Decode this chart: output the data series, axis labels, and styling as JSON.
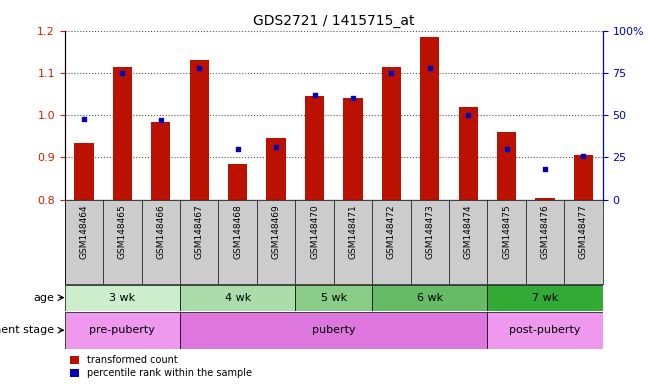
{
  "title": "GDS2721 / 1415715_at",
  "samples": [
    "GSM148464",
    "GSM148465",
    "GSM148466",
    "GSM148467",
    "GSM148468",
    "GSM148469",
    "GSM148470",
    "GSM148471",
    "GSM148472",
    "GSM148473",
    "GSM148474",
    "GSM148475",
    "GSM148476",
    "GSM148477"
  ],
  "transformed_count": [
    0.935,
    1.115,
    0.985,
    1.13,
    0.885,
    0.945,
    1.045,
    1.04,
    1.115,
    1.185,
    1.02,
    0.96,
    0.805,
    0.905
  ],
  "percentile_rank": [
    48,
    75,
    47,
    78,
    30,
    31,
    62,
    60,
    75,
    78,
    50,
    30,
    18,
    26
  ],
  "ylim_left": [
    0.8,
    1.2
  ],
  "ylim_right": [
    0,
    100
  ],
  "yticks_left": [
    0.8,
    0.9,
    1.0,
    1.1,
    1.2
  ],
  "yticks_right": [
    0,
    25,
    50,
    75,
    100
  ],
  "bar_color": "#bb1100",
  "dot_color": "#0000bb",
  "bar_baseline": 0.8,
  "age_groups": [
    {
      "label": "3 wk",
      "start": 0,
      "end": 2,
      "color": "#cceecc"
    },
    {
      "label": "4 wk",
      "start": 3,
      "end": 5,
      "color": "#aaddaa"
    },
    {
      "label": "5 wk",
      "start": 6,
      "end": 7,
      "color": "#88cc88"
    },
    {
      "label": "6 wk",
      "start": 8,
      "end": 10,
      "color": "#66bb66"
    },
    {
      "label": "7 wk",
      "start": 11,
      "end": 13,
      "color": "#33aa33"
    }
  ],
  "dev_groups": [
    {
      "label": "pre-puberty",
      "start": 0,
      "end": 2,
      "color": "#dd88ee"
    },
    {
      "label": "puberty",
      "start": 3,
      "end": 10,
      "color": "#cc66dd"
    },
    {
      "label": "post-puberty",
      "start": 11,
      "end": 13,
      "color": "#dd88ee"
    }
  ],
  "age_label": "age",
  "dev_label": "development stage",
  "legend_bar": "transformed count",
  "legend_dot": "percentile rank within the sample",
  "grid_color": "#555555",
  "tick_color_left": "#cc2200",
  "tick_color_right": "#0000cc",
  "bg_xtick": "#cccccc"
}
